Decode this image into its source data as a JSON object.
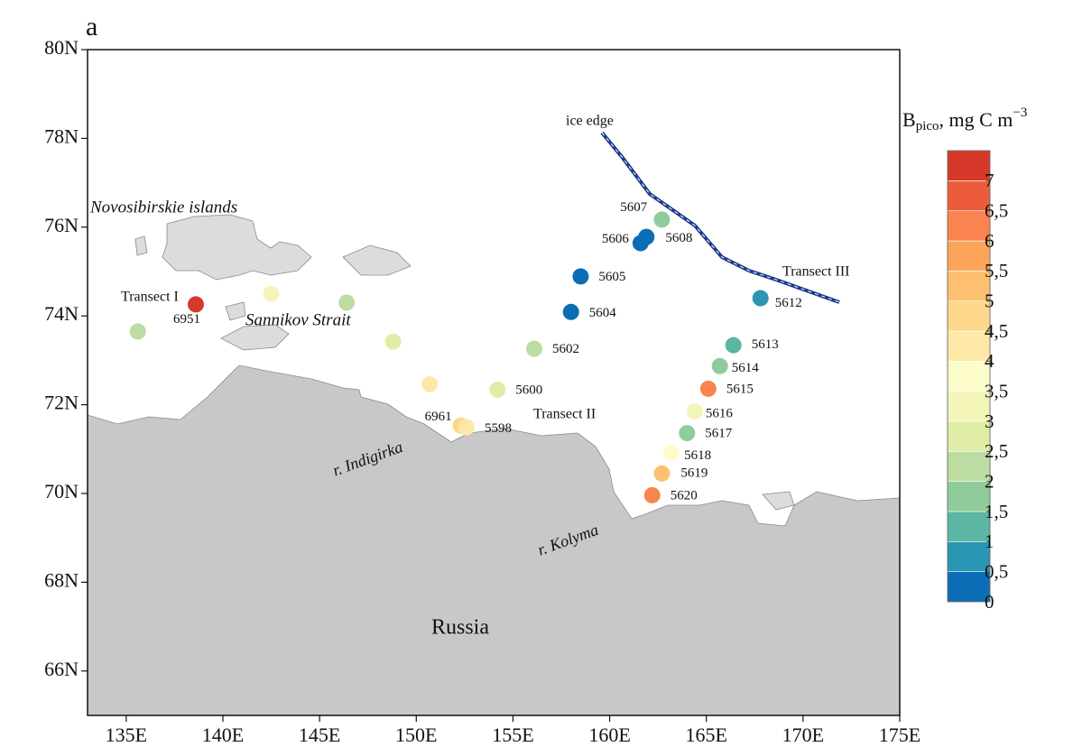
{
  "chart_data": {
    "type": "map",
    "panel_label": "a",
    "xlim": [
      133,
      175
    ],
    "ylim": [
      65,
      80
    ],
    "xticks": [
      {
        "value": 135,
        "label": "135E"
      },
      {
        "value": 140,
        "label": "140E"
      },
      {
        "value": 145,
        "label": "145E"
      },
      {
        "value": 150,
        "label": "150E"
      },
      {
        "value": 155,
        "label": "155E"
      },
      {
        "value": 160,
        "label": "160E"
      },
      {
        "value": 165,
        "label": "165E"
      },
      {
        "value": 170,
        "label": "170E"
      },
      {
        "value": 175,
        "label": "175E"
      }
    ],
    "yticks": [
      {
        "value": 66,
        "label": "66N"
      },
      {
        "value": 68,
        "label": "68N"
      },
      {
        "value": 70,
        "label": "70N"
      },
      {
        "value": 72,
        "label": "72N"
      },
      {
        "value": 74,
        "label": "74N"
      },
      {
        "value": 76,
        "label": "76N"
      },
      {
        "value": 78,
        "label": "78N"
      },
      {
        "value": 80,
        "label": "80N"
      }
    ],
    "annotations": [
      "Novosibirskie islands",
      "Sannikov Strait",
      "Transect I",
      "Transect II",
      "Transect III",
      "ice edge",
      "r. Indigirka",
      "r. Kolyma",
      "Russia"
    ],
    "stations": {
      "names": [
        null,
        "6951",
        null,
        null,
        null,
        null,
        "6961",
        "5598",
        "5600",
        "5602",
        "5604",
        "5605",
        "5606",
        "5607",
        "5608",
        "5612",
        "5613",
        "5614",
        "5615",
        "5616",
        "5617",
        "5618",
        "5619",
        "5620"
      ],
      "lon": [
        135.6,
        138.6,
        142.5,
        146.4,
        148.8,
        150.7,
        152.3,
        152.6,
        154.2,
        156.1,
        158.0,
        158.5,
        161.6,
        161.9,
        162.7,
        167.8,
        166.4,
        165.7,
        165.1,
        164.4,
        164.0,
        163.2,
        162.7,
        162.2
      ],
      "lat": [
        73.65,
        74.26,
        74.5,
        74.3,
        73.42,
        72.46,
        71.53,
        71.49,
        72.34,
        73.26,
        74.09,
        74.89,
        75.64,
        75.78,
        76.17,
        74.4,
        73.34,
        72.87,
        72.36,
        71.85,
        71.36,
        70.92,
        70.45,
        69.96
      ],
      "values": [
        2.2,
        7.2,
        3.2,
        2.3,
        2.7,
        4.2,
        4.6,
        4.4,
        2.6,
        2.4,
        0.2,
        0.3,
        0.3,
        0.4,
        1.8,
        0.7,
        1.2,
        1.9,
        6.2,
        3.2,
        1.6,
        3.7,
        5.2,
        6.1
      ]
    },
    "colorbar": {
      "title": {
        "base": "B",
        "sub": "pico",
        "main": ", mg C m",
        "sup": "−3"
      },
      "clim": [
        0,
        7.5
      ],
      "ticks": [
        0,
        {
          "value": 0.5,
          "label": "0,5"
        },
        1,
        {
          "value": 1.5,
          "label": "1,5"
        },
        2,
        {
          "value": 2.5,
          "label": "2,5"
        },
        3,
        {
          "value": 3.5,
          "label": "3,5"
        },
        4,
        {
          "value": 4.5,
          "label": "4,5"
        },
        5,
        {
          "value": 5.5,
          "label": "5,5"
        },
        6,
        {
          "value": 6.5,
          "label": "6,5"
        },
        7
      ],
      "colors": [
        "#0b6db5",
        "#2b96b3",
        "#5bb7a1",
        "#90cb9b",
        "#bddca1",
        "#e0eda6",
        "#f3f5b9",
        "#fdfccb",
        "#fde8a8",
        "#fdd78b",
        "#fdc071",
        "#fca55a",
        "#f9844f",
        "#ec5c3a",
        "#d6392a"
      ]
    }
  }
}
